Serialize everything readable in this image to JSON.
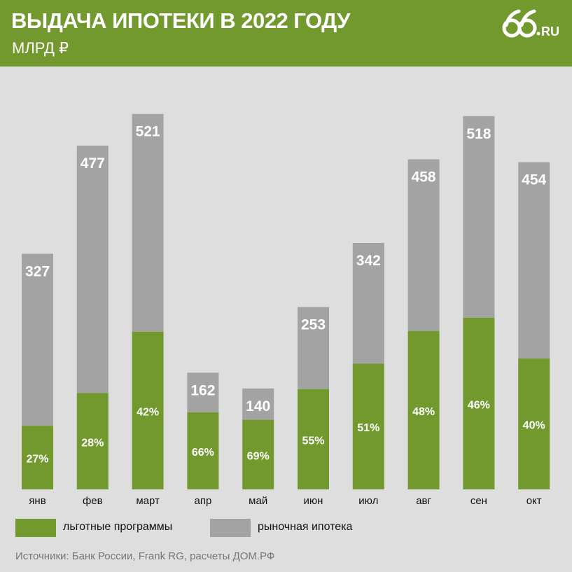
{
  "header": {
    "title": "ВЫДАЧА ИПОТЕКИ В 2022 ГОДУ",
    "subtitle": "МЛРД ₽",
    "logo_text": "66.RU"
  },
  "colors": {
    "header_bg": "#72992d",
    "green": "#72992d",
    "gray": "#a3a3a3",
    "background": "#dedede"
  },
  "chart_data": {
    "type": "bar",
    "stacked": true,
    "categories": [
      "янв",
      "фев",
      "март",
      "апр",
      "май",
      "июн",
      "июл",
      "авг",
      "сен",
      "окт"
    ],
    "totals": [
      327,
      477,
      521,
      162,
      140,
      253,
      342,
      458,
      518,
      454
    ],
    "series": [
      {
        "name": "льготные программы",
        "shares": [
          "27%",
          "28%",
          "42%",
          "66%",
          "69%",
          "55%",
          "51%",
          "48%",
          "46%",
          "40%"
        ]
      },
      {
        "name": "рыночная ипотека"
      }
    ],
    "ylim": [
      0,
      560
    ],
    "grid": false,
    "legend_position": "bottom"
  },
  "legend": [
    {
      "label": "льготные программы"
    },
    {
      "label": "рыночная ипотека"
    }
  ],
  "source": "Источники: Банк России, Frank RG, расчеты ДОМ.РФ"
}
